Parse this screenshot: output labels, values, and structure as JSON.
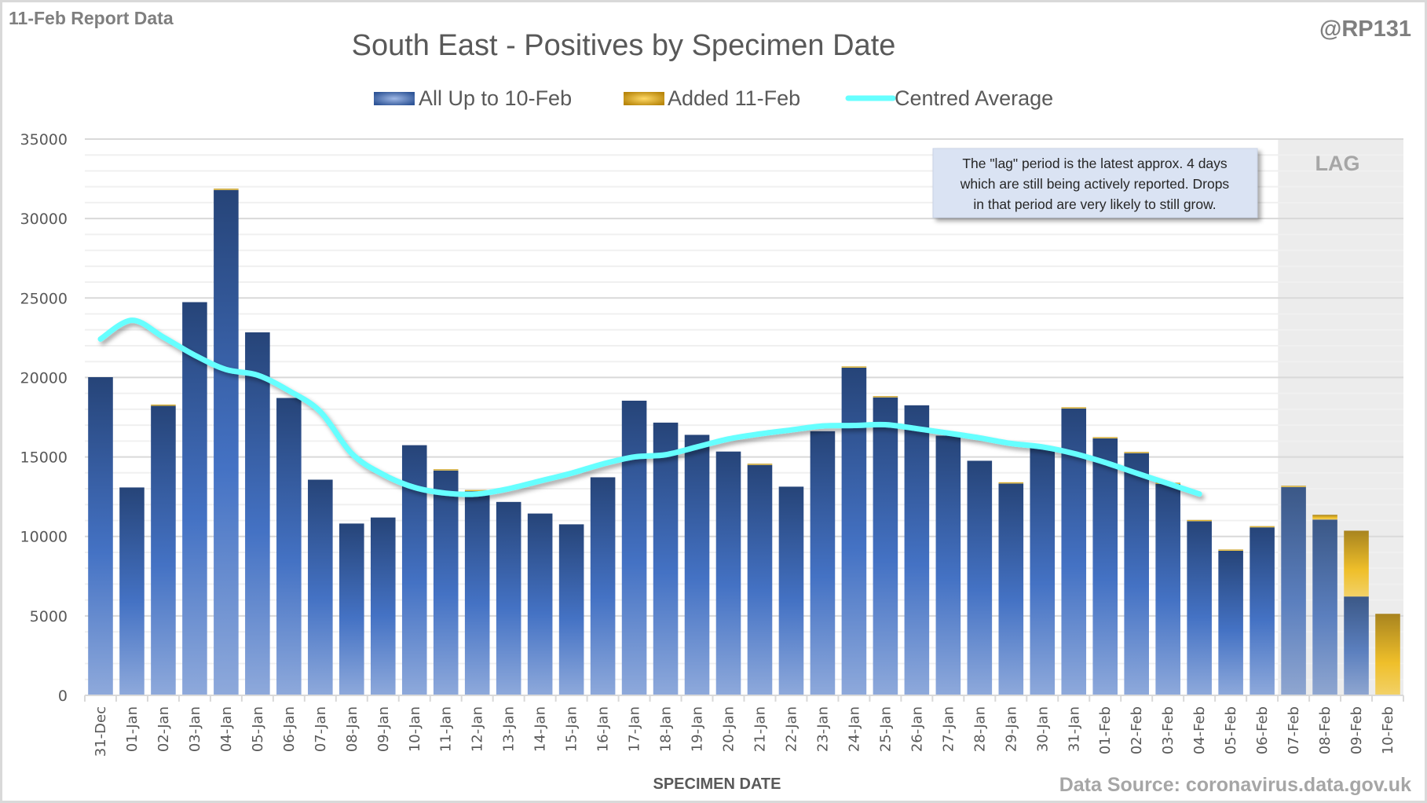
{
  "header": {
    "report_label": "11-Feb Report Data",
    "handle": "@RP131",
    "source": "Data Source: coronavirus.data.gov.uk"
  },
  "annotation": {
    "lines": [
      "The \"lag\" period is the latest approx. 4 days",
      "which are still being actively reported.  Drops",
      "in that period are very likely to still grow."
    ],
    "lag_label": "LAG"
  },
  "colors": {
    "base_dark": "#264478",
    "base_light": "#7f9fd6",
    "added_dark": "#a8841f",
    "added_light": "#f0c030",
    "average": "#66ffff",
    "lag_bg": "#ececec",
    "note_bg": "#dae3f3"
  },
  "chart_data": {
    "type": "bar",
    "stacked": true,
    "title": "South East - Positives by Specimen Date",
    "xlabel": "SPECIMEN DATE",
    "ylabel": "",
    "ylim": [
      0,
      35000
    ],
    "yticks": [
      0,
      5000,
      10000,
      15000,
      20000,
      25000,
      30000,
      35000
    ],
    "grid": true,
    "legend_position": "top-center",
    "lag_categories": [
      "07-Feb",
      "08-Feb",
      "09-Feb",
      "10-Feb"
    ],
    "categories": [
      "31-Dec",
      "01-Jan",
      "02-Jan",
      "03-Jan",
      "04-Jan",
      "05-Jan",
      "06-Jan",
      "07-Jan",
      "08-Jan",
      "09-Jan",
      "10-Jan",
      "11-Jan",
      "12-Jan",
      "13-Jan",
      "14-Jan",
      "15-Jan",
      "16-Jan",
      "17-Jan",
      "18-Jan",
      "19-Jan",
      "20-Jan",
      "21-Jan",
      "22-Jan",
      "23-Jan",
      "24-Jan",
      "25-Jan",
      "26-Jan",
      "27-Jan",
      "28-Jan",
      "29-Jan",
      "30-Jan",
      "31-Jan",
      "01-Feb",
      "02-Feb",
      "03-Feb",
      "04-Feb",
      "05-Feb",
      "06-Feb",
      "07-Feb",
      "08-Feb",
      "09-Feb",
      "10-Feb"
    ],
    "series": [
      {
        "name": "All Up to 10-Feb",
        "kind": "bar",
        "values": [
          20020,
          13080,
          18220,
          24740,
          31800,
          22840,
          18710,
          13570,
          10810,
          11190,
          15740,
          14150,
          12850,
          12170,
          11440,
          10760,
          13720,
          18540,
          17160,
          16390,
          15340,
          14500,
          13130,
          16620,
          20620,
          18750,
          18250,
          16340,
          14760,
          13330,
          15630,
          18050,
          16170,
          15240,
          13300,
          10960,
          9100,
          10570,
          13110,
          11060,
          6220,
          0
        ]
      },
      {
        "name": "Added 11-Feb",
        "kind": "bar",
        "values": [
          0,
          0,
          60,
          0,
          80,
          0,
          0,
          0,
          0,
          0,
          0,
          70,
          30,
          0,
          0,
          0,
          0,
          0,
          0,
          0,
          0,
          60,
          0,
          0,
          40,
          60,
          0,
          0,
          0,
          40,
          0,
          50,
          50,
          50,
          40,
          60,
          50,
          60,
          40,
          300,
          4140,
          5130
        ]
      },
      {
        "name": "Centred Average",
        "kind": "line",
        "values": [
          22420,
          23600,
          22540,
          21400,
          20500,
          20150,
          19170,
          17850,
          15220,
          13900,
          13080,
          12720,
          12670,
          13000,
          13490,
          13980,
          14560,
          15000,
          15140,
          15630,
          16130,
          16450,
          16700,
          16950,
          16980,
          17030,
          16780,
          16500,
          16200,
          15850,
          15630,
          15220,
          14650,
          13980,
          13330,
          12670,
          null,
          null,
          null,
          null,
          null,
          null
        ]
      }
    ]
  }
}
